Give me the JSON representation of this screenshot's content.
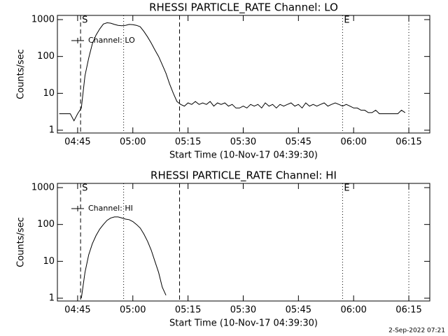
{
  "chart_data": [
    {
      "type": "line",
      "title": "RHESSI PARTICLE_RATE Channel: LO",
      "xlabel": "Start Time (10-Nov-17 04:39:30)",
      "ylabel": "Counts/sec",
      "xlim": [
        279.5,
        380.7
      ],
      "xticks": [
        {
          "value": 285,
          "label": "04:45"
        },
        {
          "value": 300,
          "label": "05:00"
        },
        {
          "value": 315,
          "label": "05:15"
        },
        {
          "value": 330,
          "label": "05:30"
        },
        {
          "value": 345,
          "label": "05:45"
        },
        {
          "value": 360,
          "label": "06:00"
        },
        {
          "value": 375,
          "label": "06:15"
        }
      ],
      "ylim": [
        0.84,
        1300
      ],
      "yticks": [
        1,
        10,
        100,
        1000
      ],
      "ylog": true,
      "legend": "top-left",
      "markers": [
        {
          "x": 285.8,
          "style": "dashed"
        },
        {
          "x": 297.5,
          "style": "dotted"
        },
        {
          "x": 312.7,
          "style": "dashed"
        },
        {
          "x": 357.0,
          "style": "dotted"
        },
        {
          "x": 375.0,
          "style": "dotted"
        }
      ],
      "annotations": [
        {
          "text": "S",
          "x": 285.8
        },
        {
          "text": "E",
          "x": 357.0
        }
      ],
      "x": [
        280,
        281,
        282,
        283,
        284,
        285,
        286,
        287,
        288,
        289,
        290,
        291,
        292,
        293,
        294,
        295,
        296,
        297,
        298,
        299,
        300,
        301,
        302,
        303,
        304,
        305,
        306,
        307,
        308,
        309,
        310,
        311,
        312,
        313,
        314,
        315,
        316,
        317,
        318,
        319,
        320,
        321,
        322,
        323,
        324,
        325,
        326,
        327,
        328,
        329,
        330,
        331,
        332,
        333,
        334,
        335,
        336,
        337,
        338,
        339,
        340,
        341,
        342,
        343,
        344,
        345,
        346,
        347,
        348,
        349,
        350,
        351,
        352,
        353,
        354,
        355,
        356,
        357,
        358,
        359,
        360,
        361,
        362,
        363,
        364,
        365,
        366,
        367,
        368,
        369,
        370,
        371,
        372,
        373,
        374
      ],
      "series": [
        {
          "name": "Channel: LO",
          "color": "#000000",
          "values": [
            2.8,
            2.8,
            2.8,
            2.8,
            1.8,
            2.8,
            4,
            30,
            90,
            220,
            380,
            560,
            760,
            820,
            800,
            740,
            700,
            680,
            700,
            740,
            730,
            700,
            640,
            480,
            340,
            230,
            150,
            100,
            60,
            35,
            18,
            10,
            6,
            5,
            4.5,
            5.5,
            5,
            6,
            5,
            5.5,
            5,
            6,
            4.5,
            5.5,
            5,
            5.5,
            4.5,
            5,
            4,
            4,
            4.5,
            4,
            5,
            4.5,
            5,
            4,
            5.5,
            4.5,
            5,
            4,
            5,
            4.5,
            5,
            5.5,
            4.5,
            5,
            4,
            5.5,
            4.5,
            5,
            4.5,
            5,
            5.5,
            4.5,
            5,
            5.5,
            5,
            4.5,
            5,
            4.5,
            4,
            4,
            3.5,
            3.5,
            3,
            3,
            3.5,
            2.8,
            2.8,
            2.8,
            2.8,
            2.8,
            2.8,
            3.5,
            3
          ]
        }
      ]
    },
    {
      "type": "line",
      "title": "RHESSI PARTICLE_RATE Channel: HI",
      "xlabel": "Start Time (10-Nov-17 04:39:30)",
      "ylabel": "Counts/sec",
      "xlim": [
        279.5,
        380.7
      ],
      "xticks": [
        {
          "value": 285,
          "label": "04:45"
        },
        {
          "value": 300,
          "label": "05:00"
        },
        {
          "value": 315,
          "label": "05:15"
        },
        {
          "value": 330,
          "label": "05:30"
        },
        {
          "value": 345,
          "label": "05:45"
        },
        {
          "value": 360,
          "label": "06:00"
        },
        {
          "value": 375,
          "label": "06:15"
        }
      ],
      "ylim": [
        0.84,
        1300
      ],
      "yticks": [
        1,
        10,
        100,
        1000
      ],
      "ylog": true,
      "legend": "top-left",
      "markers": [
        {
          "x": 285.8,
          "style": "dashed"
        },
        {
          "x": 297.5,
          "style": "dotted"
        },
        {
          "x": 312.7,
          "style": "dashed"
        },
        {
          "x": 357.0,
          "style": "dotted"
        },
        {
          "x": 375.0,
          "style": "dotted"
        }
      ],
      "annotations": [
        {
          "text": "S",
          "x": 285.8
        },
        {
          "text": "E",
          "x": 357.0
        }
      ],
      "x": [
        286,
        287,
        288,
        289,
        290,
        291,
        292,
        293,
        294,
        295,
        296,
        297,
        298,
        299,
        300,
        301,
        302,
        303,
        304,
        305,
        306,
        307,
        308,
        309
      ],
      "series": [
        {
          "name": "Channel: HI",
          "color": "#000000",
          "values": [
            1,
            5,
            15,
            30,
            50,
            75,
            100,
            130,
            150,
            160,
            160,
            150,
            140,
            135,
            120,
            100,
            80,
            55,
            35,
            20,
            10,
            5,
            2,
            1.2
          ]
        }
      ]
    }
  ],
  "footer": "2-Sep-2022 07:21"
}
